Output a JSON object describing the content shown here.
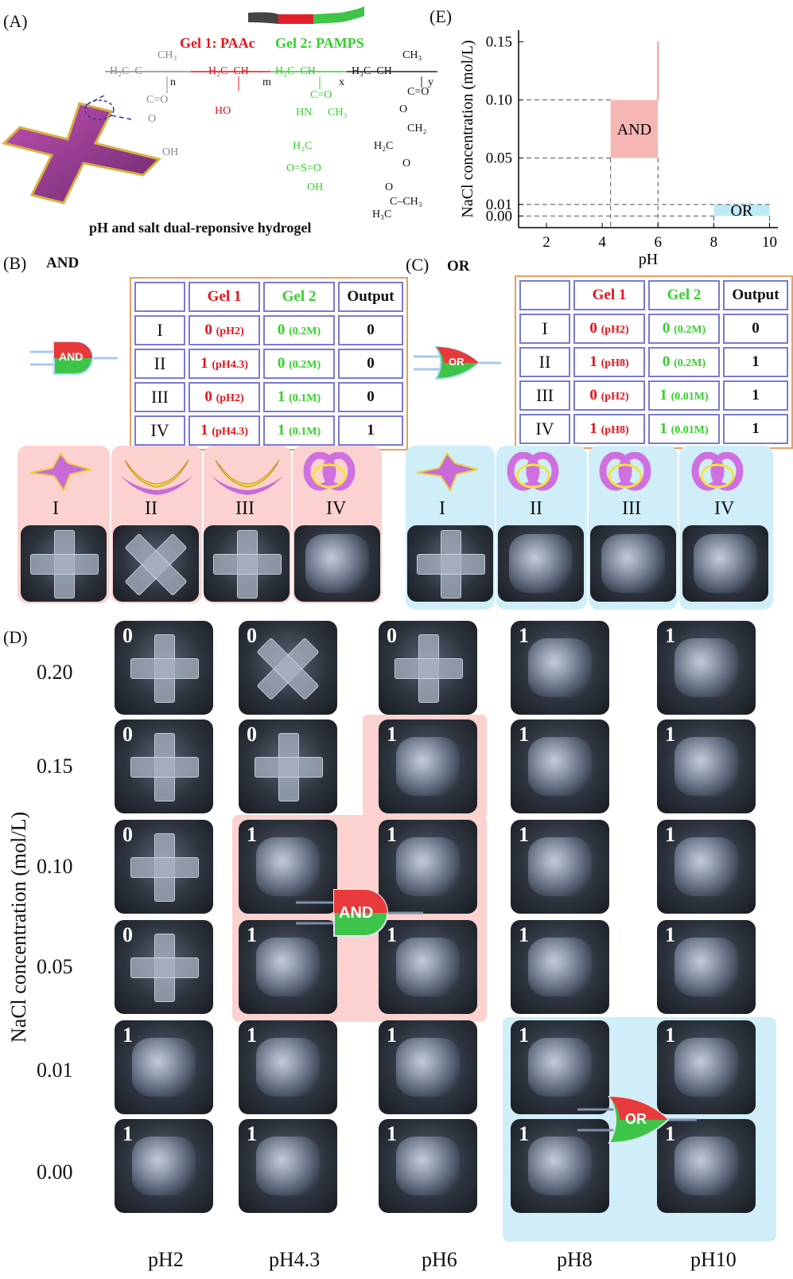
{
  "panelA": {
    "label": "(A)",
    "gel1": "Gel 1: PAAc",
    "gel2": "Gel 2: PAMPS",
    "caption": "pH and salt dual-reponsive hydrogel",
    "chem": {
      "main_chain": "H₂C–C",
      "ch3": "CH₃",
      "n": "n",
      "m": "m",
      "x": "x",
      "y": "y",
      "h2c_ch_red": "H₂C–CH",
      "h2c_ch_green": "H₂C–CH",
      "h3c_ch": "H₃C–CH",
      "co_o": "C=O",
      "o": "O",
      "oh": "OH",
      "ho": "HO",
      "hn": "HN",
      "h2c": "H₂C",
      "ch2": "CH₂",
      "so3h": "O=S=O",
      "sulfonic_oh": "OH",
      "ch3b": "CH₃",
      "h3c": "H₃C",
      "cch3": "C–CH₃"
    }
  },
  "panelB": {
    "label": "(B)",
    "title": "AND",
    "gate_text": "AND",
    "headers": [
      "",
      "Gel 1",
      "Gel 2",
      "Output"
    ],
    "rows": [
      {
        "id": "I",
        "g1": "0",
        "g1c": "(pH2)",
        "g2": "0",
        "g2c": "(0.2M)",
        "out": "0"
      },
      {
        "id": "II",
        "g1": "1",
        "g1c": "(pH4.3)",
        "g2": "0",
        "g2c": "(0.2M)",
        "out": "0"
      },
      {
        "id": "III",
        "g1": "0",
        "g1c": "(pH2)",
        "g2": "1",
        "g2c": "(0.1M)",
        "out": "0"
      },
      {
        "id": "IV",
        "g1": "1",
        "g1c": "(pH4.3)",
        "g2": "1",
        "g2c": "(0.1M)",
        "out": "1"
      }
    ],
    "states": [
      "I",
      "II",
      "III",
      "IV"
    ]
  },
  "panelC": {
    "label": "(C)",
    "title": "OR",
    "gate_text": "OR",
    "headers": [
      "",
      "Gel 1",
      "Gel 2",
      "Output"
    ],
    "rows": [
      {
        "id": "I",
        "g1": "0",
        "g1c": "(pH2)",
        "g2": "0",
        "g2c": "(0.2M)",
        "out": "0"
      },
      {
        "id": "II",
        "g1": "1",
        "g1c": "(pH8)",
        "g2": "0",
        "g2c": "(0.2M)",
        "out": "1"
      },
      {
        "id": "III",
        "g1": "0",
        "g1c": "(pH2)",
        "g2": "1",
        "g2c": "(0.01M)",
        "out": "1"
      },
      {
        "id": "IV",
        "g1": "1",
        "g1c": "(pH8)",
        "g2": "1",
        "g2c": "(0.01M)",
        "out": "1"
      }
    ],
    "states": [
      "I",
      "II",
      "III",
      "IV"
    ]
  },
  "panelD": {
    "label": "(D)",
    "ylabel": "NaCl concentration (mol/L)",
    "row_labels": [
      "0.20",
      "0.15",
      "0.10",
      "0.05",
      "0.01",
      "0.00"
    ],
    "col_labels": [
      "pH2",
      "pH4.3",
      "pH6",
      "pH8",
      "pH10"
    ],
    "grid": [
      [
        "0",
        "0",
        "0",
        "1",
        "1"
      ],
      [
        "0",
        "0",
        "1",
        "1",
        "1"
      ],
      [
        "0",
        "1",
        "1",
        "1",
        "1"
      ],
      [
        "0",
        "1",
        "1",
        "1",
        "1"
      ],
      [
        "1",
        "1",
        "1",
        "1",
        "1"
      ],
      [
        "1",
        "1",
        "1",
        "1",
        "1"
      ]
    ],
    "and_gate": "AND",
    "or_gate": "OR"
  },
  "panelE": {
    "label": "(E)",
    "chart_data": {
      "type": "area",
      "xlabel": "pH",
      "ylabel": "NaCl concentration (mol/L)",
      "xlim": [
        1,
        10.3
      ],
      "ylim": [
        -0.01,
        0.16
      ],
      "x_ticks": [
        "2",
        "4",
        "6",
        "8",
        "10"
      ],
      "y_ticks": [
        "0.00",
        "0.01",
        "0.05",
        "0.10",
        "0.15"
      ],
      "regions": [
        {
          "name": "AND",
          "x": [
            4.3,
            6
          ],
          "y": [
            0.05,
            0.1
          ],
          "color": "#f6b7b4"
        },
        {
          "name": "",
          "x": [
            6,
            6
          ],
          "y": [
            0.1,
            0.15
          ],
          "color": "#f39a94"
        },
        {
          "name": "OR",
          "x": [
            8,
            10
          ],
          "y": [
            0,
            0.01
          ],
          "color": "#bfe9f5"
        }
      ]
    }
  },
  "colors": {
    "and_bg": "#fbd2cf",
    "or_bg": "#cfeef8",
    "gel1": "#e5141b",
    "gel2": "#35d02a",
    "gate_red": "#e83a3a",
    "gate_green": "#3fc44a"
  }
}
